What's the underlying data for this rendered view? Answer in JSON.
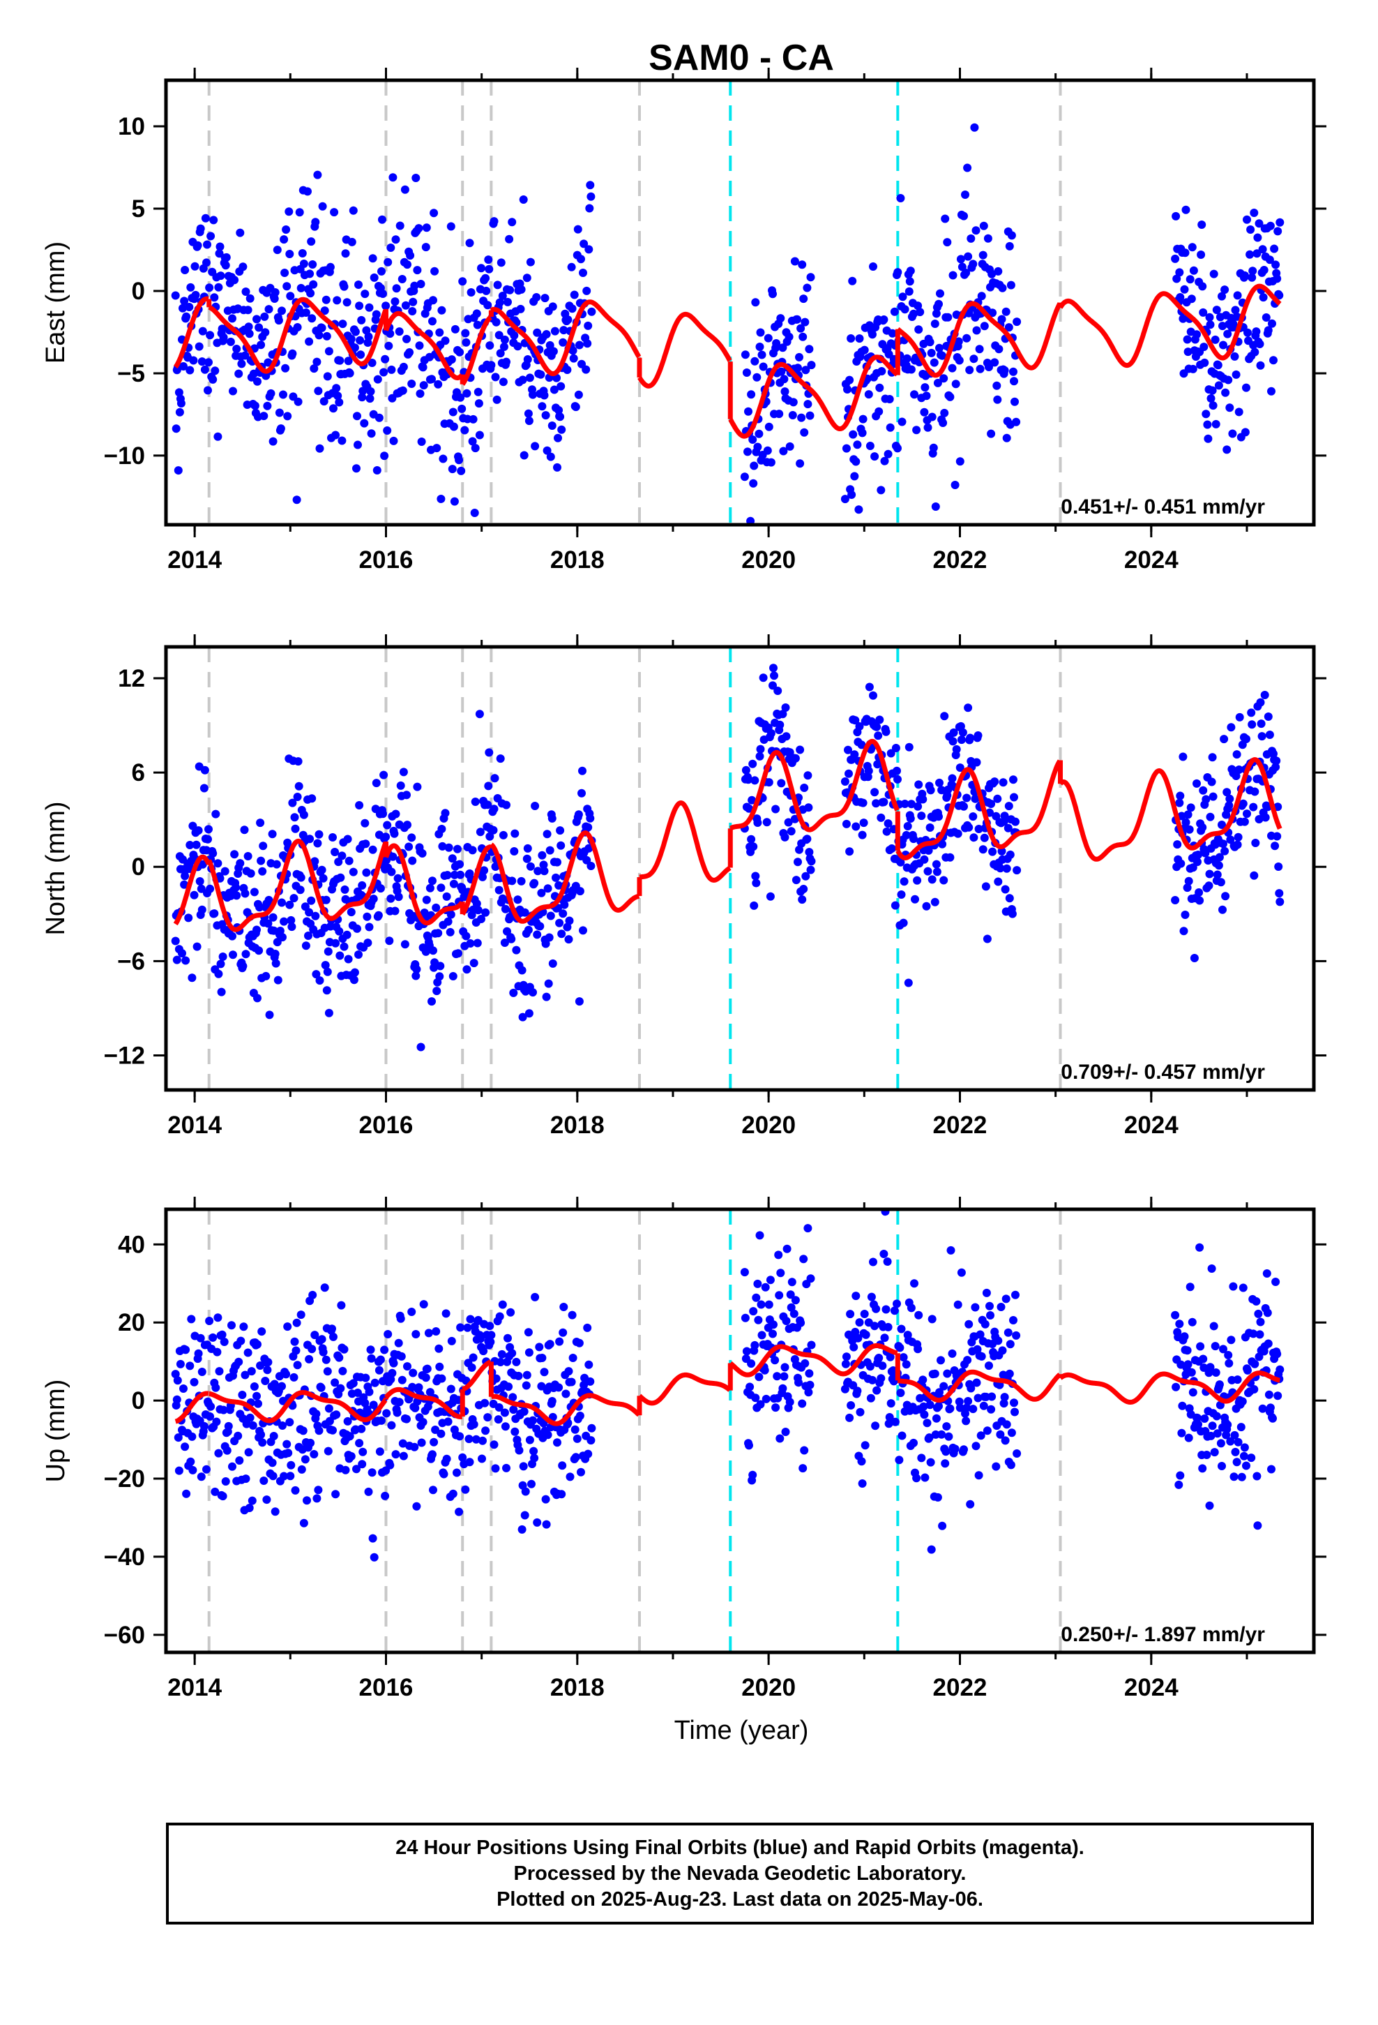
{
  "chart_data": {
    "title": "SAM0 - CA",
    "colors": {
      "data": "#0000ff",
      "model": "#ff0000",
      "equipment_change": "#c8c8c8",
      "earthquake": "#00e5ee"
    },
    "xlim": [
      2013.7,
      2025.7
    ],
    "x_ticks": [
      2014,
      2016,
      2018,
      2020,
      2022,
      2024
    ],
    "x_tick_labels": [
      "2014",
      "2016",
      "2018",
      "2020",
      "2022",
      "2024"
    ],
    "xlabel": "Time (year)",
    "gray_dashed_lines": [
      2014.15,
      2016.0,
      2016.8,
      2017.1,
      2018.65,
      2023.05
    ],
    "cyan_dashed_lines": [
      2019.6,
      2021.35
    ],
    "data_spans": [
      [
        2013.8,
        2018.15
      ],
      [
        2019.75,
        2020.45
      ],
      [
        2020.8,
        2021.35
      ],
      [
        2021.35,
        2022.6
      ],
      [
        2024.25,
        2025.35
      ]
    ],
    "panels": [
      {
        "type": "scatter",
        "ylabel": "East (mm)",
        "ylim": [
          -14.2,
          12.8
        ],
        "y_ticks": [
          -10,
          -5,
          0,
          5,
          10
        ],
        "y_tick_labels": [
          "−10",
          "−5",
          "0",
          "5",
          "10"
        ],
        "rate": "0.451+/- 0.451 mm/yr",
        "scatter_sigma": 3.2,
        "model": {
          "trend": 0.451,
          "ref_year": 2019.5,
          "offset0": 0.0,
          "annual_amp": 1.9,
          "annual_phase": 0.3,
          "semi_amp": 0.5,
          "semi_phase": 1.0,
          "steps": [
            {
              "year": 2014.15,
              "size": -0.5
            },
            {
              "year": 2016.0,
              "size": -1.3
            },
            {
              "year": 2016.8,
              "size": -0.6
            },
            {
              "year": 2017.1,
              "size": 0.4
            },
            {
              "year": 2018.65,
              "size": -1.2
            },
            {
              "year": 2019.6,
              "size": -3.5
            },
            {
              "year": 2021.35,
              "size": 2.8
            },
            {
              "year": 2023.05,
              "size": -0.3
            }
          ],
          "line_points": []
        }
      },
      {
        "type": "scatter",
        "ylabel": "North (mm)",
        "ylim": [
          -14.2,
          14.0
        ],
        "y_ticks": [
          -12,
          -6,
          0,
          6,
          12
        ],
        "y_tick_labels": [
          "−12",
          "−6",
          "0",
          "6",
          "12"
        ],
        "rate": "0.709+/- 0.457 mm/yr",
        "scatter_sigma": 2.8,
        "model": {
          "trend": 0.709,
          "ref_year": 2019.5,
          "offset0": 1.3,
          "annual_amp": 2.3,
          "annual_phase": 1.2,
          "semi_amp": 0.9,
          "semi_phase": 0.4,
          "steps": [
            {
              "year": 2014.15,
              "size": 0.3
            },
            {
              "year": 2016.0,
              "size": -1.0
            },
            {
              "year": 2016.8,
              "size": -0.8
            },
            {
              "year": 2017.1,
              "size": 0.2
            },
            {
              "year": 2018.65,
              "size": 1.2
            },
            {
              "year": 2019.6,
              "size": 2.5
            },
            {
              "year": 2021.35,
              "size": -2.5
            },
            {
              "year": 2023.05,
              "size": -1.5
            }
          ],
          "line_points": []
        }
      },
      {
        "type": "scatter",
        "ylabel": "Up (mm)",
        "ylim": [
          -64.5,
          49.0
        ],
        "y_ticks": [
          -60,
          -40,
          -20,
          0,
          20,
          40
        ],
        "y_tick_labels": [
          "−60",
          "−40",
          "−20",
          "0",
          "20",
          "40"
        ],
        "rate": "0.250+/- 1.897 mm/yr",
        "scatter_sigma": 12.5,
        "model": {
          "trend": 0.25,
          "ref_year": 2019.5,
          "offset0": 0.0,
          "annual_amp": 3.0,
          "annual_phase": 0.1,
          "semi_amp": 1.2,
          "semi_phase": 0.8,
          "steps": [
            {
              "year": 2014.15,
              "size": 0.0
            },
            {
              "year": 2016.0,
              "size": 0.5
            },
            {
              "year": 2016.8,
              "size": 7.0
            },
            {
              "year": 2017.1,
              "size": -9.0
            },
            {
              "year": 2018.65,
              "size": 5.0
            },
            {
              "year": 2019.6,
              "size": 7.0
            },
            {
              "year": 2021.35,
              "size": -7.0
            },
            {
              "year": 2023.05,
              "size": -1.0
            }
          ],
          "line_points": []
        }
      }
    ]
  },
  "footer": {
    "line1": "24 Hour Positions Using Final Orbits (blue) and Rapid Orbits (magenta).",
    "line2": "Processed by the Nevada Geodetic Laboratory.",
    "line3": "Plotted on 2025-Aug-23. Last data on 2025-May-06."
  }
}
